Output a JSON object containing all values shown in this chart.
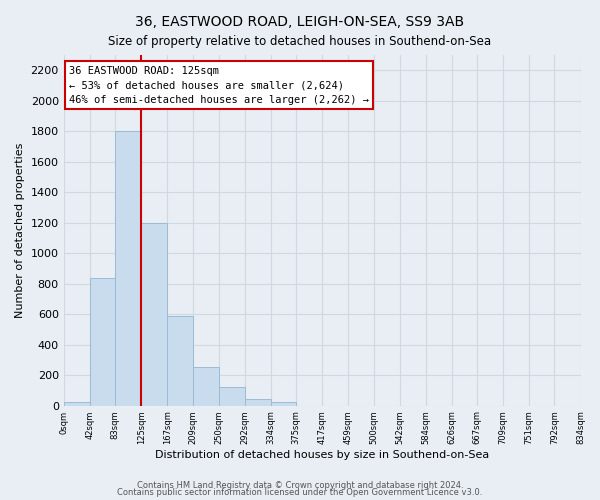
{
  "title": "36, EASTWOOD ROAD, LEIGH-ON-SEA, SS9 3AB",
  "subtitle": "Size of property relative to detached houses in Southend-on-Sea",
  "xlabel": "Distribution of detached houses by size in Southend-on-Sea",
  "ylabel": "Number of detached properties",
  "bar_edges": [
    0,
    42,
    83,
    125,
    167,
    209,
    250,
    292,
    334,
    375,
    417,
    459,
    500,
    542,
    584,
    626,
    667,
    709,
    751,
    792,
    834
  ],
  "bar_heights": [
    25,
    840,
    1800,
    1200,
    590,
    255,
    120,
    40,
    25,
    0,
    0,
    0,
    0,
    0,
    0,
    0,
    0,
    0,
    0,
    0
  ],
  "bar_color": "#c8dcee",
  "bar_edge_color": "#9bbcd4",
  "vline_x": 125,
  "vline_color": "#cc0000",
  "annotation_text": "36 EASTWOOD ROAD: 125sqm\n← 53% of detached houses are smaller (2,624)\n46% of semi-detached houses are larger (2,262) →",
  "annotation_box_color": "white",
  "annotation_box_edge_color": "#cc0000",
  "ylim": [
    0,
    2300
  ],
  "yticks": [
    0,
    200,
    400,
    600,
    800,
    1000,
    1200,
    1400,
    1600,
    1800,
    2000,
    2200
  ],
  "tick_labels": [
    "0sqm",
    "42sqm",
    "83sqm",
    "125sqm",
    "167sqm",
    "209sqm",
    "250sqm",
    "292sqm",
    "334sqm",
    "375sqm",
    "417sqm",
    "459sqm",
    "500sqm",
    "542sqm",
    "584sqm",
    "626sqm",
    "667sqm",
    "709sqm",
    "751sqm",
    "792sqm",
    "834sqm"
  ],
  "footnote1": "Contains HM Land Registry data © Crown copyright and database right 2024.",
  "footnote2": "Contains public sector information licensed under the Open Government Licence v3.0.",
  "bg_color": "#e8eef4",
  "grid_color": "#d0d8e0"
}
